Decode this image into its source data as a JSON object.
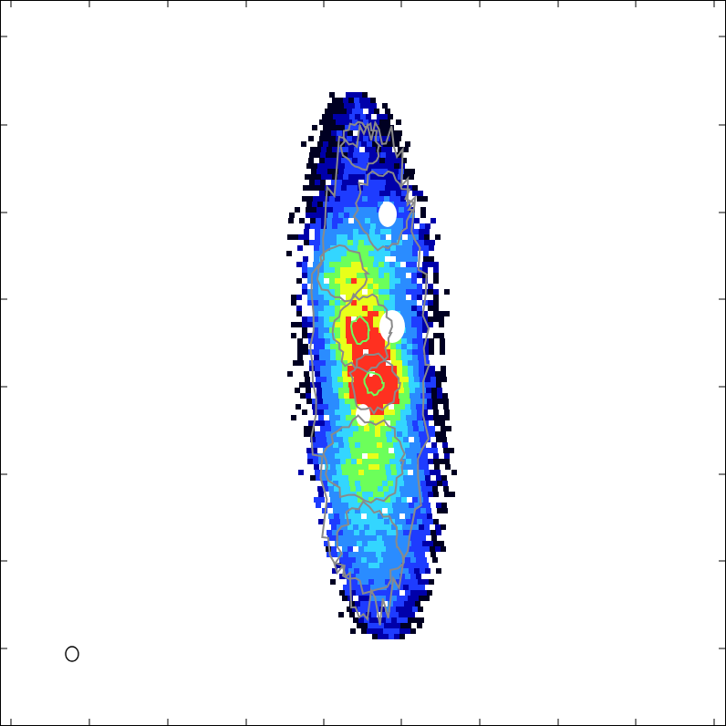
{
  "figure": {
    "kind": "intensity map with contours",
    "colormap": [
      "#000022",
      "#0000aa",
      "#1e3cff",
      "#2a8cff",
      "#33d6ff",
      "#6cff5a",
      "#e8ff1a",
      "#ff3020"
    ],
    "contour_color": "#8a8a8a",
    "frame_color": "#000000",
    "background": "#ffffff",
    "beam_marker": "ellipse",
    "tick_count_x": 9,
    "tick_count_y": 8
  }
}
